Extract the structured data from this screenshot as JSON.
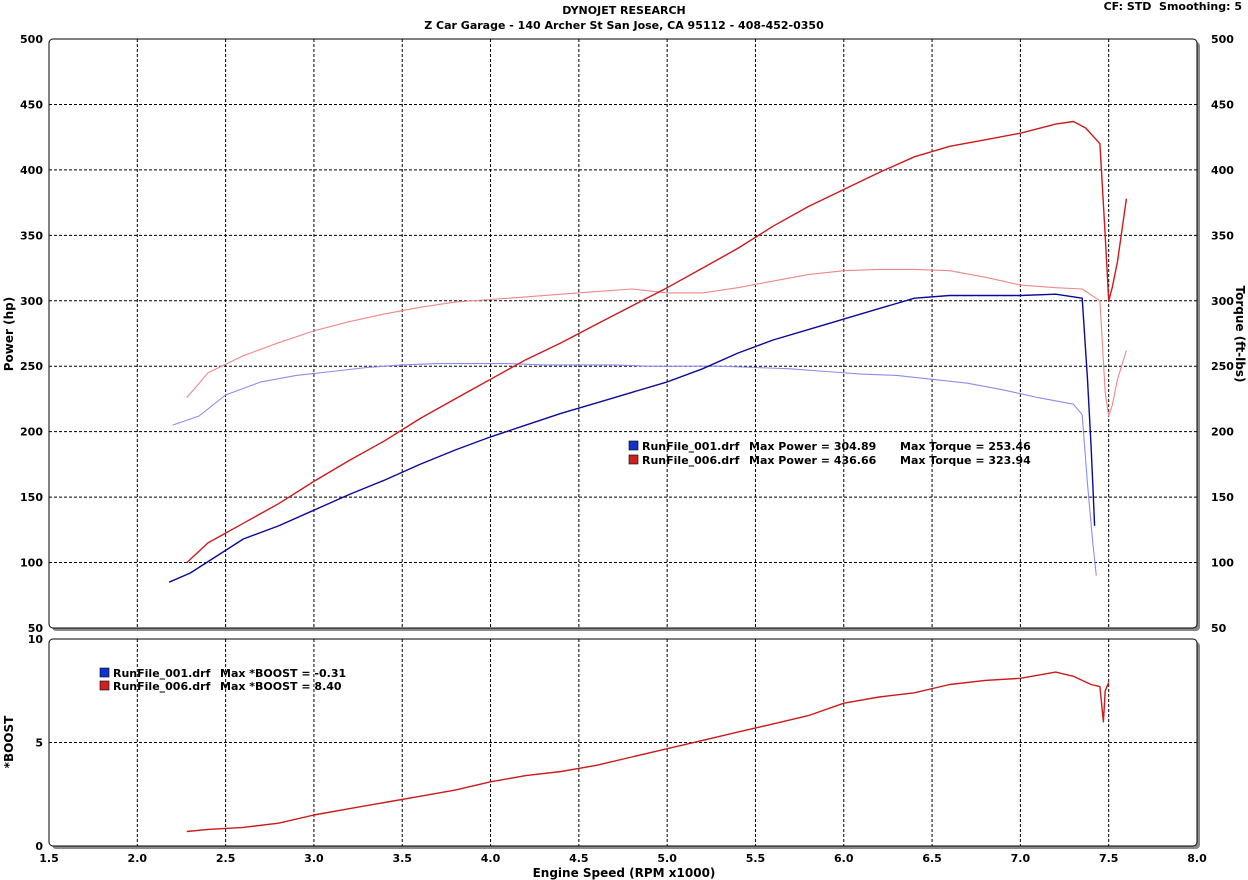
{
  "header": {
    "title": "DYNOJET RESEARCH",
    "subtitle": "Z Car Garage - 140 Archer St San Jose, CA 95112 - 408-452-0350",
    "settings": "CF: STD  Smoothing: 5"
  },
  "colors": {
    "run1_power": "#0a0a99",
    "run1_torque": "#8c8cee",
    "run2_power": "#cc1a1a",
    "run2_torque": "#ee8888",
    "boost": "#cc1a1a",
    "legend_run1": "#1133cc",
    "legend_run2": "#cc2222"
  },
  "chart_data": [
    {
      "type": "line",
      "xlabel": "",
      "ylabel": "Power (hp)",
      "ylabel_right": "Torque (ft-lbs)",
      "xlim": [
        1.5,
        8.0
      ],
      "ylim": [
        50,
        500
      ],
      "x_ticks": [
        "1.5",
        "2.0",
        "2.5",
        "3.0",
        "3.5",
        "4.0",
        "4.5",
        "5.0",
        "5.5",
        "6.0",
        "6.5",
        "7.0",
        "7.5",
        "8.0"
      ],
      "y_ticks": [
        "50",
        "100",
        "150",
        "200",
        "250",
        "300",
        "350",
        "400",
        "450",
        "500"
      ],
      "grid": true,
      "legend": [
        {
          "file": "RunFile_001.drf",
          "power_text": "Max Power = 304.89",
          "torque_text": "Max Torque = 253.46"
        },
        {
          "file": "RunFile_006.drf",
          "power_text": "Max Power = 436.66",
          "torque_text": "Max Torque = 323.94"
        }
      ],
      "series": [
        {
          "key": "run1_power",
          "role": "power",
          "x": [
            2.18,
            2.3,
            2.45,
            2.6,
            2.8,
            3.0,
            3.2,
            3.4,
            3.6,
            3.8,
            4.0,
            4.2,
            4.4,
            4.6,
            4.8,
            5.0,
            5.2,
            5.4,
            5.6,
            5.8,
            6.0,
            6.2,
            6.4,
            6.6,
            6.8,
            7.0,
            7.2,
            7.35,
            7.38,
            7.4,
            7.41,
            7.42
          ],
          "y": [
            85,
            92,
            105,
            118,
            128,
            140,
            152,
            163,
            175,
            186,
            196,
            205,
            214,
            222,
            230,
            238,
            248,
            260,
            270,
            278,
            286,
            294,
            302,
            304,
            304,
            304,
            305,
            302,
            240,
            190,
            160,
            128
          ]
        },
        {
          "key": "run1_torque",
          "role": "torque",
          "x": [
            2.2,
            2.35,
            2.5,
            2.7,
            2.9,
            3.1,
            3.3,
            3.5,
            3.7,
            3.9,
            4.1,
            4.3,
            4.5,
            4.7,
            4.9,
            5.1,
            5.3,
            5.5,
            5.7,
            5.9,
            6.1,
            6.3,
            6.5,
            6.7,
            6.9,
            7.1,
            7.3,
            7.35,
            7.38,
            7.41,
            7.43
          ],
          "y": [
            205,
            212,
            228,
            238,
            243,
            246,
            249,
            251,
            252,
            252,
            252,
            251,
            251,
            251,
            250,
            250,
            250,
            249,
            248,
            246,
            244,
            243,
            240,
            237,
            232,
            226,
            221,
            213,
            160,
            115,
            90
          ]
        },
        {
          "key": "run2_power",
          "role": "power",
          "x": [
            2.28,
            2.4,
            2.6,
            2.8,
            3.0,
            3.2,
            3.4,
            3.6,
            3.8,
            4.0,
            4.2,
            4.4,
            4.6,
            4.8,
            5.0,
            5.2,
            5.4,
            5.6,
            5.8,
            6.0,
            6.2,
            6.4,
            6.6,
            6.8,
            7.0,
            7.2,
            7.3,
            7.37,
            7.45,
            7.48,
            7.5,
            7.52,
            7.55,
            7.6
          ],
          "y": [
            100,
            115,
            130,
            145,
            162,
            178,
            193,
            210,
            225,
            240,
            255,
            268,
            282,
            296,
            310,
            325,
            340,
            357,
            372,
            385,
            398,
            410,
            418,
            423,
            428,
            435,
            437,
            432,
            420,
            350,
            300,
            310,
            330,
            378
          ]
        },
        {
          "key": "run2_torque",
          "role": "torque",
          "x": [
            2.28,
            2.4,
            2.6,
            2.8,
            3.0,
            3.2,
            3.4,
            3.6,
            3.8,
            4.0,
            4.2,
            4.4,
            4.6,
            4.8,
            5.0,
            5.2,
            5.4,
            5.6,
            5.8,
            6.0,
            6.2,
            6.4,
            6.6,
            6.8,
            7.0,
            7.2,
            7.35,
            7.45,
            7.48,
            7.5,
            7.52,
            7.55,
            7.6
          ],
          "y": [
            226,
            245,
            258,
            268,
            277,
            284,
            290,
            295,
            299,
            301,
            303,
            305,
            307,
            309,
            306,
            306,
            310,
            315,
            320,
            323,
            324,
            324,
            323,
            318,
            312,
            310,
            309,
            300,
            230,
            212,
            220,
            240,
            262
          ]
        }
      ]
    },
    {
      "type": "line",
      "xlabel": "Engine Speed (RPM x1000)",
      "ylabel": "*BOOST",
      "xlim": [
        1.5,
        8.0
      ],
      "ylim": [
        0,
        10
      ],
      "x_ticks": [
        "1.5",
        "2.0",
        "2.5",
        "3.0",
        "3.5",
        "4.0",
        "4.5",
        "5.0",
        "5.5",
        "6.0",
        "6.5",
        "7.0",
        "7.5",
        "8.0"
      ],
      "y_ticks": [
        "0",
        "5",
        "10"
      ],
      "grid": true,
      "legend": [
        {
          "file": "RunFile_001.drf",
          "text": "Max *BOOST = -0.31"
        },
        {
          "file": "RunFile_006.drf",
          "text": "Max *BOOST = 8.40"
        }
      ],
      "series": [
        {
          "key": "boost",
          "x": [
            2.28,
            2.4,
            2.6,
            2.8,
            3.0,
            3.2,
            3.4,
            3.6,
            3.8,
            4.0,
            4.2,
            4.4,
            4.6,
            4.8,
            5.0,
            5.2,
            5.4,
            5.6,
            5.8,
            6.0,
            6.2,
            6.4,
            6.6,
            6.8,
            7.0,
            7.2,
            7.3,
            7.4,
            7.45,
            7.47,
            7.48,
            7.5
          ],
          "y": [
            0.7,
            0.8,
            0.9,
            1.1,
            1.5,
            1.8,
            2.1,
            2.4,
            2.7,
            3.1,
            3.4,
            3.6,
            3.9,
            4.3,
            4.7,
            5.1,
            5.5,
            5.9,
            6.3,
            6.9,
            7.2,
            7.4,
            7.8,
            8.0,
            8.1,
            8.4,
            8.2,
            7.8,
            7.7,
            6.0,
            7.5,
            7.9
          ]
        }
      ]
    }
  ]
}
